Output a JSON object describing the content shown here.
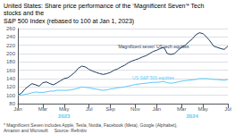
{
  "chart_data": {
    "type": "line",
    "title": "United States: Share price performance of the ‘Magnificent Seven’* Tech stocks and the",
    "subtitle": "S&P 500 Index (rebased to 100 at Jan 1, 2023)",
    "footnote": "* Magnificent Seven includes Apple, Tesla, Nvidia, Facebook (Meta), Google (Alphabet), Amazon and Microsoft     Source: Refinitiv",
    "categories": [
      "Jan",
      null,
      null,
      null,
      null,
      null,
      null,
      "Mar",
      null,
      null,
      null,
      null,
      null,
      "May",
      null,
      null,
      null,
      null,
      null,
      null,
      "Jul",
      null,
      null,
      null,
      null,
      null,
      "Sep",
      null,
      null,
      null,
      null,
      null,
      null,
      "Nov",
      null,
      null,
      null,
      null,
      null,
      "Jan",
      null,
      null,
      null,
      null,
      null,
      null,
      "Mar",
      null,
      null,
      null,
      null,
      null,
      "May",
      null,
      null,
      null,
      null,
      null,
      null,
      "Jul"
    ],
    "series": [
      {
        "name": "‘Magnificent seven’ US tech equities",
        "color": "#1c3a5e",
        "values": [
          100,
          105,
          115,
          122,
          128,
          125,
          122,
          130,
          132,
          128,
          125,
          130,
          135,
          140,
          142,
          148,
          155,
          165,
          170,
          168,
          162,
          158,
          155,
          152,
          150,
          152,
          155,
          160,
          163,
          168,
          172,
          178,
          182,
          185,
          188,
          192,
          195,
          200,
          205,
          208,
          212,
          215,
          200,
          198,
          200,
          208,
          215,
          220,
          228,
          235,
          245,
          250,
          248,
          240,
          230,
          218,
          215,
          212,
          210,
          218
        ]
      },
      {
        "name": "US S&P 500 equities",
        "color": "#5bc8f5",
        "values": [
          100,
          100,
          102,
          104,
          106,
          108,
          107,
          107,
          108,
          110,
          110,
          112,
          112,
          112,
          112,
          113,
          115,
          117,
          120,
          119,
          118,
          116,
          115,
          113,
          112,
          113,
          115,
          116,
          118,
          119,
          120,
          122,
          124,
          126,
          127,
          128,
          129,
          130,
          131,
          131,
          132,
          133,
          130,
          129,
          130,
          132,
          134,
          135,
          136,
          137,
          138,
          140,
          140,
          140,
          139,
          138,
          138,
          137,
          136,
          138
        ]
      }
    ],
    "ylim": [
      80,
      260
    ],
    "yticks": [
      80,
      100,
      120,
      140,
      160,
      180,
      200,
      220,
      240,
      260
    ],
    "grid": true,
    "annotations": [
      {
        "text": "2023",
        "color": "#5bc8f5"
      },
      {
        "text": "2024",
        "color": "#5bc8f5"
      }
    ]
  }
}
